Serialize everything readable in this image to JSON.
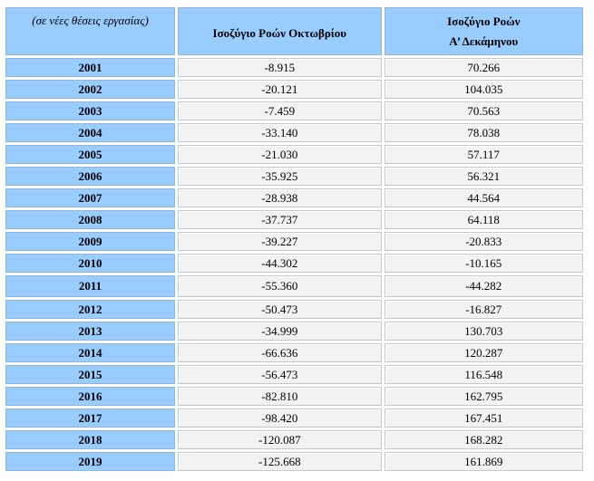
{
  "table": {
    "header": {
      "unit_note": "(σε νέες θέσεις εργασίας)",
      "col_october": "Ισοζύγιο Ροών Οκτωβρίου",
      "col_decade_line1": "Ισοζύγιο Ροών",
      "col_decade_line2": "Α’ Δεκάμηνου"
    },
    "rows": [
      {
        "year": "2001",
        "october": "-8.915",
        "decade": "70.266"
      },
      {
        "year": "2002",
        "october": "-20.121",
        "decade": "104.035"
      },
      {
        "year": "2003",
        "october": "-7.459",
        "decade": "70.563"
      },
      {
        "year": "2004",
        "october": "-33.140",
        "decade": "78.038"
      },
      {
        "year": "2005",
        "october": "-21.030",
        "decade": "57.117"
      },
      {
        "year": "2006",
        "october": "-35.925",
        "decade": "56.321"
      },
      {
        "year": "2007",
        "october": "-28.938",
        "decade": "44.564"
      },
      {
        "year": "2008",
        "october": "-37.737",
        "decade": "64.118"
      },
      {
        "year": "2009",
        "october": "-39.227",
        "decade": "-20.833"
      },
      {
        "year": "2010",
        "october": "-44.302",
        "decade": "-10.165"
      },
      {
        "year": "2011",
        "october": "-55.360",
        "decade": "-44.282"
      },
      {
        "year": "2012",
        "october": "-50.473",
        "decade": "-16.827"
      },
      {
        "year": "2013",
        "october": "-34.999",
        "decade": "130.703"
      },
      {
        "year": "2014",
        "october": "-66.636",
        "decade": "120.287"
      },
      {
        "year": "2015",
        "october": "-56.473",
        "decade": "116.548"
      },
      {
        "year": "2016",
        "october": "-82.810",
        "decade": "162.795"
      },
      {
        "year": "2017",
        "october": "-98.420",
        "decade": "167.451"
      },
      {
        "year": "2018",
        "october": "-120.087",
        "decade": "168.282"
      },
      {
        "year": "2019",
        "october": "-125.668",
        "decade": "161.869"
      }
    ]
  }
}
